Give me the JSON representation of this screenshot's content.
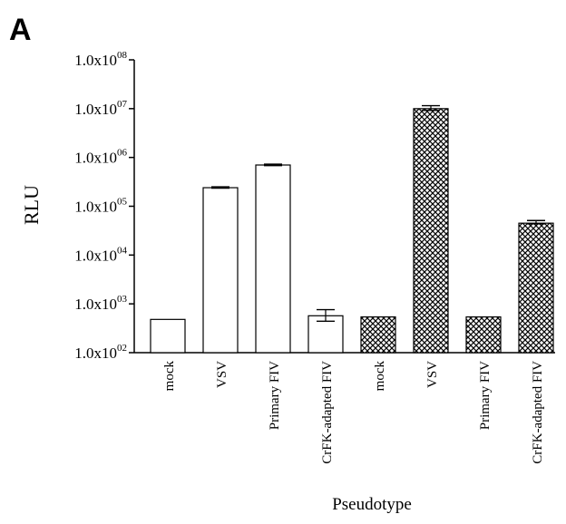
{
  "panel_label": "A",
  "chart_data": {
    "type": "bar",
    "xlabel": "Pseudotype",
    "ylabel": "RLU",
    "y_scale": "log",
    "ylim": [
      100,
      100000000
    ],
    "y_ticks": [
      {
        "value": 100,
        "mantissa": "1.0x10",
        "exponent": "02"
      },
      {
        "value": 1000,
        "mantissa": "1.0x10",
        "exponent": "03"
      },
      {
        "value": 10000,
        "mantissa": "1.0x10",
        "exponent": "04"
      },
      {
        "value": 100000,
        "mantissa": "1.0x10",
        "exponent": "05"
      },
      {
        "value": 1000000,
        "mantissa": "1.0x10",
        "exponent": "06"
      },
      {
        "value": 10000000,
        "mantissa": "1.0x10",
        "exponent": "07"
      },
      {
        "value": 100000000,
        "mantissa": "1.0x10",
        "exponent": "08"
      }
    ],
    "categories": [
      "mock",
      "VSV",
      "Primary FIV",
      "CrFK-adapted FIV",
      "mock",
      "VSV",
      "Primary FIV",
      "CrFK-adapted FIV"
    ],
    "values": [
      480,
      240000,
      700000,
      570,
      540,
      10000000,
      540,
      45000
    ],
    "error_upper": [
      null,
      250000,
      730000,
      760,
      null,
      11500000,
      null,
      51000
    ],
    "error_lower": [
      null,
      235000,
      680000,
      440,
      null,
      9200000,
      null,
      43500
    ],
    "fill": [
      "open",
      "open",
      "open",
      "open",
      "crosshatch",
      "crosshatch",
      "crosshatch",
      "crosshatch"
    ],
    "grid": false,
    "colors": {
      "bar_stroke": "#000000",
      "open_fill": "#ffffff",
      "hatch": "#000000"
    }
  }
}
